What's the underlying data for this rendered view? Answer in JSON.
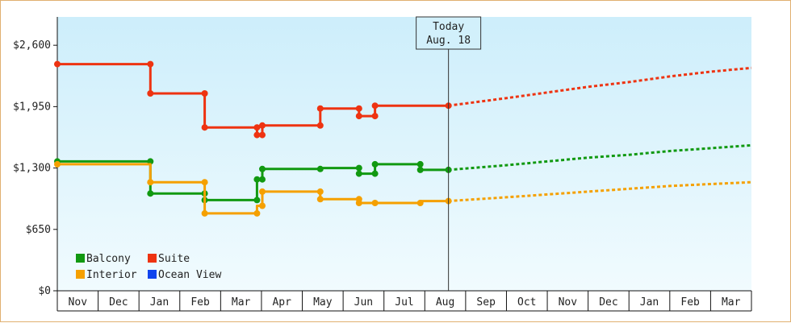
{
  "chart_data": {
    "type": "line",
    "title": "",
    "ylim": [
      0,
      2900
    ],
    "y_ticks": [
      {
        "value": 0,
        "label": "$0"
      },
      {
        "value": 650,
        "label": "$650"
      },
      {
        "value": 1300,
        "label": "$1,300"
      },
      {
        "value": 1950,
        "label": "$1,950"
      },
      {
        "value": 2600,
        "label": "$2,600"
      }
    ],
    "x_range_months": [
      0,
      17
    ],
    "months": [
      "Nov",
      "Dec",
      "Jan",
      "Feb",
      "Mar",
      "Apr",
      "May",
      "Jun",
      "Jul",
      "Aug",
      "Sep",
      "Oct",
      "Nov",
      "Dec",
      "Jan",
      "Feb",
      "Mar"
    ],
    "today": {
      "line1": "Today",
      "line2": "Aug. 18",
      "month_index": 9.58
    },
    "grid": false,
    "legend": {
      "placement": "bottom-left",
      "items": [
        {
          "name": "Balcony",
          "color": "#119911"
        },
        {
          "name": "Suite",
          "color": "#ee3311"
        },
        {
          "name": "Interior",
          "color": "#f5a000"
        },
        {
          "name": "Ocean View",
          "color": "#1144ee"
        }
      ]
    },
    "series": [
      {
        "name": "Suite",
        "color": "#ee3311",
        "history": [
          [
            0.0,
            2400
          ],
          [
            2.28,
            2400
          ],
          [
            2.28,
            2090
          ],
          [
            3.61,
            2090
          ],
          [
            3.61,
            1730
          ],
          [
            4.89,
            1730
          ],
          [
            4.89,
            1650
          ],
          [
            5.02,
            1650
          ],
          [
            5.02,
            1750
          ],
          [
            6.44,
            1750
          ],
          [
            6.44,
            1930
          ],
          [
            7.39,
            1930
          ],
          [
            7.39,
            1850
          ],
          [
            7.78,
            1850
          ],
          [
            7.78,
            1960
          ],
          [
            9.58,
            1960
          ]
        ],
        "markers": [
          [
            0.0,
            2400
          ],
          [
            2.28,
            2400
          ],
          [
            2.28,
            2090
          ],
          [
            3.61,
            2090
          ],
          [
            3.61,
            1730
          ],
          [
            4.89,
            1730
          ],
          [
            4.89,
            1650
          ],
          [
            5.02,
            1650
          ],
          [
            5.02,
            1750
          ],
          [
            6.44,
            1750
          ],
          [
            6.44,
            1930
          ],
          [
            7.39,
            1930
          ],
          [
            7.39,
            1850
          ],
          [
            7.78,
            1850
          ],
          [
            7.78,
            1960
          ],
          [
            9.58,
            1960
          ]
        ],
        "forecast": [
          [
            9.58,
            1960
          ],
          [
            11.0,
            2040
          ],
          [
            12.0,
            2100
          ],
          [
            13.0,
            2160
          ],
          [
            14.0,
            2210
          ],
          [
            15.0,
            2270
          ],
          [
            16.0,
            2320
          ],
          [
            17.0,
            2360
          ]
        ]
      },
      {
        "name": "Balcony",
        "color": "#119911",
        "history": [
          [
            0.0,
            1370
          ],
          [
            2.28,
            1370
          ],
          [
            2.28,
            1030
          ],
          [
            3.61,
            1030
          ],
          [
            3.61,
            960
          ],
          [
            4.89,
            960
          ],
          [
            4.89,
            1180
          ],
          [
            5.02,
            1180
          ],
          [
            5.02,
            1290
          ],
          [
            6.44,
            1290
          ],
          [
            6.44,
            1300
          ],
          [
            7.39,
            1300
          ],
          [
            7.39,
            1240
          ],
          [
            7.78,
            1240
          ],
          [
            7.78,
            1340
          ],
          [
            8.89,
            1340
          ],
          [
            8.89,
            1280
          ],
          [
            9.58,
            1280
          ]
        ],
        "markers": [
          [
            0.0,
            1370
          ],
          [
            2.28,
            1370
          ],
          [
            2.28,
            1030
          ],
          [
            3.61,
            1030
          ],
          [
            3.61,
            960
          ],
          [
            4.89,
            960
          ],
          [
            4.89,
            1180
          ],
          [
            5.02,
            1180
          ],
          [
            5.02,
            1290
          ],
          [
            6.44,
            1290
          ],
          [
            7.39,
            1300
          ],
          [
            7.39,
            1240
          ],
          [
            7.78,
            1240
          ],
          [
            7.78,
            1340
          ],
          [
            8.89,
            1340
          ],
          [
            8.89,
            1280
          ],
          [
            9.58,
            1280
          ]
        ],
        "forecast": [
          [
            9.58,
            1280
          ],
          [
            11.0,
            1330
          ],
          [
            12.0,
            1370
          ],
          [
            13.0,
            1410
          ],
          [
            14.0,
            1440
          ],
          [
            15.0,
            1480
          ],
          [
            16.0,
            1510
          ],
          [
            17.0,
            1540
          ]
        ]
      },
      {
        "name": "Interior",
        "color": "#f5a000",
        "history": [
          [
            0.0,
            1340
          ],
          [
            2.28,
            1340
          ],
          [
            2.28,
            1150
          ],
          [
            3.61,
            1150
          ],
          [
            3.61,
            820
          ],
          [
            4.89,
            820
          ],
          [
            4.89,
            900
          ],
          [
            5.02,
            900
          ],
          [
            5.02,
            1050
          ],
          [
            6.44,
            1050
          ],
          [
            6.44,
            970
          ],
          [
            7.39,
            970
          ],
          [
            7.39,
            930
          ],
          [
            7.78,
            930
          ],
          [
            7.78,
            930
          ],
          [
            8.89,
            930
          ],
          [
            8.89,
            950
          ],
          [
            9.58,
            950
          ]
        ],
        "markers": [
          [
            0.0,
            1340
          ],
          [
            2.28,
            1150
          ],
          [
            3.61,
            1150
          ],
          [
            3.61,
            820
          ],
          [
            4.89,
            820
          ],
          [
            5.02,
            900
          ],
          [
            5.02,
            1050
          ],
          [
            6.44,
            1050
          ],
          [
            6.44,
            970
          ],
          [
            7.39,
            970
          ],
          [
            7.39,
            930
          ],
          [
            7.78,
            930
          ],
          [
            8.89,
            930
          ],
          [
            9.58,
            950
          ]
        ],
        "forecast": [
          [
            9.58,
            950
          ],
          [
            11.0,
            990
          ],
          [
            12.0,
            1020
          ],
          [
            13.0,
            1050
          ],
          [
            14.0,
            1080
          ],
          [
            15.0,
            1110
          ],
          [
            16.0,
            1130
          ],
          [
            17.0,
            1150
          ]
        ]
      },
      {
        "name": "Ocean View",
        "color": "#1144ee",
        "history": [],
        "markers": [],
        "forecast": []
      }
    ]
  }
}
